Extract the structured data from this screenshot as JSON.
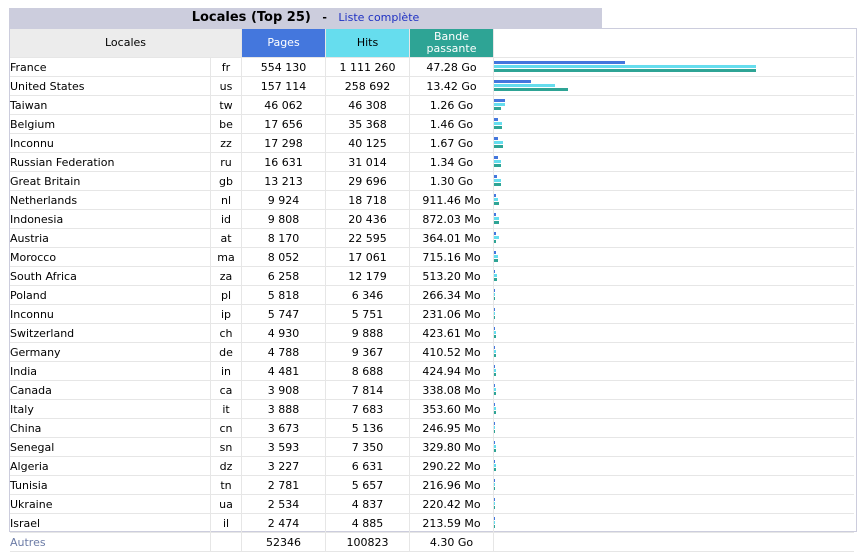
{
  "title": {
    "heading": "Locales (Top 25)",
    "separator": "-",
    "link": "Liste complète"
  },
  "colors": {
    "pages": "#4477dd",
    "hits": "#66ddee",
    "bandwidth": "#2ea495",
    "header": "#cccddd"
  },
  "columns": {
    "locales": "Locales",
    "pages": "Pages",
    "hits": "Hits",
    "bandwidth": "Bande passante"
  },
  "rows": [
    {
      "name": "France",
      "code": "fr",
      "pages": "554 130",
      "hits": "1 111 260",
      "bw": "47.28 Go",
      "pv": 554130,
      "hv": 1111260,
      "bv": 47.28
    },
    {
      "name": "United States",
      "code": "us",
      "pages": "157 114",
      "hits": "258 692",
      "bw": "13.42 Go",
      "pv": 157114,
      "hv": 258692,
      "bv": 13.42
    },
    {
      "name": "Taiwan",
      "code": "tw",
      "pages": "46 062",
      "hits": "46 308",
      "bw": "1.26 Go",
      "pv": 46062,
      "hv": 46308,
      "bv": 1.26
    },
    {
      "name": "Belgium",
      "code": "be",
      "pages": "17 656",
      "hits": "35 368",
      "bw": "1.46 Go",
      "pv": 17656,
      "hv": 35368,
      "bv": 1.46
    },
    {
      "name": "Inconnu",
      "code": "zz",
      "pages": "17 298",
      "hits": "40 125",
      "bw": "1.67 Go",
      "pv": 17298,
      "hv": 40125,
      "bv": 1.67
    },
    {
      "name": "Russian Federation",
      "code": "ru",
      "pages": "16 631",
      "hits": "31 014",
      "bw": "1.34 Go",
      "pv": 16631,
      "hv": 31014,
      "bv": 1.34
    },
    {
      "name": "Great Britain",
      "code": "gb",
      "pages": "13 213",
      "hits": "29 696",
      "bw": "1.30 Go",
      "pv": 13213,
      "hv": 29696,
      "bv": 1.3
    },
    {
      "name": "Netherlands",
      "code": "nl",
      "pages": "9 924",
      "hits": "18 718",
      "bw": "911.46 Mo",
      "pv": 9924,
      "hv": 18718,
      "bv": 0.911
    },
    {
      "name": "Indonesia",
      "code": "id",
      "pages": "9 808",
      "hits": "20 436",
      "bw": "872.03 Mo",
      "pv": 9808,
      "hv": 20436,
      "bv": 0.872
    },
    {
      "name": "Austria",
      "code": "at",
      "pages": "8 170",
      "hits": "22 595",
      "bw": "364.01 Mo",
      "pv": 8170,
      "hv": 22595,
      "bv": 0.364
    },
    {
      "name": "Morocco",
      "code": "ma",
      "pages": "8 052",
      "hits": "17 061",
      "bw": "715.16 Mo",
      "pv": 8052,
      "hv": 17061,
      "bv": 0.715
    },
    {
      "name": "South Africa",
      "code": "za",
      "pages": "6 258",
      "hits": "12 179",
      "bw": "513.20 Mo",
      "pv": 6258,
      "hv": 12179,
      "bv": 0.513
    },
    {
      "name": "Poland",
      "code": "pl",
      "pages": "5 818",
      "hits": "6 346",
      "bw": "266.34 Mo",
      "pv": 5818,
      "hv": 6346,
      "bv": 0.266
    },
    {
      "name": "Inconnu",
      "code": "ip",
      "pages": "5 747",
      "hits": "5 751",
      "bw": "231.06 Mo",
      "pv": 5747,
      "hv": 5751,
      "bv": 0.231
    },
    {
      "name": "Switzerland",
      "code": "ch",
      "pages": "4 930",
      "hits": "9 888",
      "bw": "423.61 Mo",
      "pv": 4930,
      "hv": 9888,
      "bv": 0.424
    },
    {
      "name": "Germany",
      "code": "de",
      "pages": "4 788",
      "hits": "9 367",
      "bw": "410.52 Mo",
      "pv": 4788,
      "hv": 9367,
      "bv": 0.411
    },
    {
      "name": "India",
      "code": "in",
      "pages": "4 481",
      "hits": "8 688",
      "bw": "424.94 Mo",
      "pv": 4481,
      "hv": 8688,
      "bv": 0.425
    },
    {
      "name": "Canada",
      "code": "ca",
      "pages": "3 908",
      "hits": "7 814",
      "bw": "338.08 Mo",
      "pv": 3908,
      "hv": 7814,
      "bv": 0.338
    },
    {
      "name": "Italy",
      "code": "it",
      "pages": "3 888",
      "hits": "7 683",
      "bw": "353.60 Mo",
      "pv": 3888,
      "hv": 7683,
      "bv": 0.354
    },
    {
      "name": "China",
      "code": "cn",
      "pages": "3 673",
      "hits": "5 136",
      "bw": "246.95 Mo",
      "pv": 3673,
      "hv": 5136,
      "bv": 0.247
    },
    {
      "name": "Senegal",
      "code": "sn",
      "pages": "3 593",
      "hits": "7 350",
      "bw": "329.80 Mo",
      "pv": 3593,
      "hv": 7350,
      "bv": 0.33
    },
    {
      "name": "Algeria",
      "code": "dz",
      "pages": "3 227",
      "hits": "6 631",
      "bw": "290.22 Mo",
      "pv": 3227,
      "hv": 6631,
      "bv": 0.29
    },
    {
      "name": "Tunisia",
      "code": "tn",
      "pages": "2 781",
      "hits": "5 657",
      "bw": "216.96 Mo",
      "pv": 2781,
      "hv": 5657,
      "bv": 0.217
    },
    {
      "name": "Ukraine",
      "code": "ua",
      "pages": "2 534",
      "hits": "4 837",
      "bw": "220.42 Mo",
      "pv": 2534,
      "hv": 4837,
      "bv": 0.22
    },
    {
      "name": "Israel",
      "code": "il",
      "pages": "2 474",
      "hits": "4 885",
      "bw": "213.59 Mo",
      "pv": 2474,
      "hv": 4885,
      "bv": 0.214
    }
  ],
  "others": {
    "name": "Autres",
    "pages": "52346",
    "hits": "100823",
    "bw": "4.30 Go"
  }
}
